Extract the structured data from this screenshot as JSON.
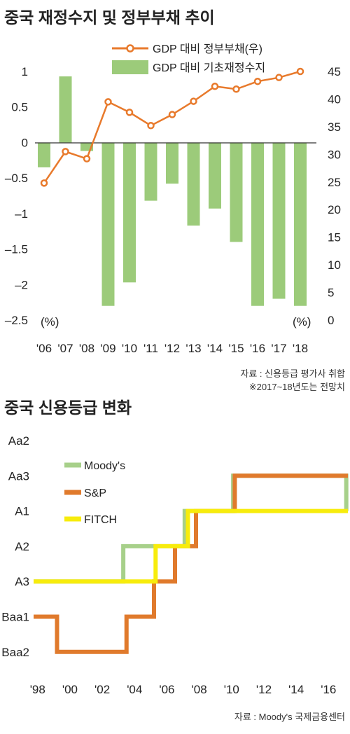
{
  "chart_data": [
    {
      "type": "bar",
      "title": "중국 재정수지 및 정부부채 추이",
      "categories": [
        "'06",
        "'07",
        "'08",
        "'09",
        "'10",
        "'11",
        "'12",
        "'13",
        "'14",
        "'15",
        "'16",
        "'17",
        "'18"
      ],
      "left_axis": {
        "ticks": [
          "1",
          "0.5",
          "0",
          "–0.5",
          "–1",
          "–1.5",
          "–2",
          "–2.5"
        ],
        "tick_values": [
          1,
          0.5,
          0,
          -0.5,
          -1,
          -1.5,
          -2,
          -2.5
        ],
        "range": [
          -2.5,
          1
        ],
        "unit": "(%)"
      },
      "right_axis": {
        "ticks": [
          "45",
          "40",
          "35",
          "30",
          "25",
          "20",
          "15",
          "10",
          "5",
          "0"
        ],
        "tick_values": [
          45,
          40,
          35,
          30,
          25,
          20,
          15,
          10,
          5,
          0
        ],
        "range": [
          0,
          45
        ],
        "unit": "(%)"
      },
      "series": [
        {
          "name": "GDP 대비 정부부채(우)",
          "type": "line",
          "axis": "right",
          "color": "#e87a2c",
          "values": [
            24.8,
            30.5,
            29.2,
            39.5,
            37.6,
            35.2,
            37.2,
            39.6,
            42.3,
            41.8,
            43.2,
            43.9,
            45
          ]
        },
        {
          "name": "GDP 대비 기초재정수지",
          "type": "bar",
          "axis": "left",
          "color": "#9ccb7a",
          "values": [
            -0.35,
            0.93,
            -0.12,
            -2.3,
            -1.97,
            -0.82,
            -0.58,
            -1.17,
            -0.93,
            -1.4,
            -2.3,
            -2.2,
            -2.3
          ]
        }
      ],
      "source": "자료 : 신용등급 평가사 취합",
      "note": "※2017~18년도는 전망치"
    },
    {
      "type": "line",
      "title": "중국 신용등급 변화",
      "x_ticks": [
        "'98",
        "'00",
        "'02",
        "'04",
        "'06",
        "'08",
        "'10",
        "'12",
        "'14",
        "'16"
      ],
      "x_tick_values": [
        1998,
        2000,
        2002,
        2004,
        2006,
        2008,
        2010,
        2012,
        2014,
        2016
      ],
      "x_range": [
        1997.75,
        2017.2
      ],
      "y_levels": [
        "Aa2",
        "Aa3",
        "A1",
        "A2",
        "A3",
        "Baa1",
        "Baa2"
      ],
      "series": [
        {
          "name": "Moody's",
          "color": "#a7d08a",
          "steps": [
            [
              1997.75,
              "A3"
            ],
            [
              2003.3,
              "A2"
            ],
            [
              2007.1,
              "A1"
            ],
            [
              2010.1,
              "Aa3"
            ],
            [
              2017.1,
              "A1"
            ]
          ]
        },
        {
          "name": "S&P",
          "color": "#e07a2c",
          "steps": [
            [
              1997.75,
              "Baa1"
            ],
            [
              1999.2,
              "Baa2"
            ],
            [
              2003.5,
              "Baa1"
            ],
            [
              2005.2,
              "A3"
            ],
            [
              2006.5,
              "A2"
            ],
            [
              2007.8,
              "A1"
            ],
            [
              2010.2,
              "Aa3"
            ],
            [
              2017.2,
              "Aa3"
            ]
          ]
        },
        {
          "name": "FITCH",
          "color": "#f7ec0c",
          "steps": [
            [
              1997.75,
              "A3"
            ],
            [
              2005.3,
              "A2"
            ],
            [
              2007.3,
              "A1"
            ],
            [
              2017.2,
              "A1"
            ]
          ]
        }
      ],
      "source": "자료 : Moody's 국제금융센터"
    }
  ]
}
